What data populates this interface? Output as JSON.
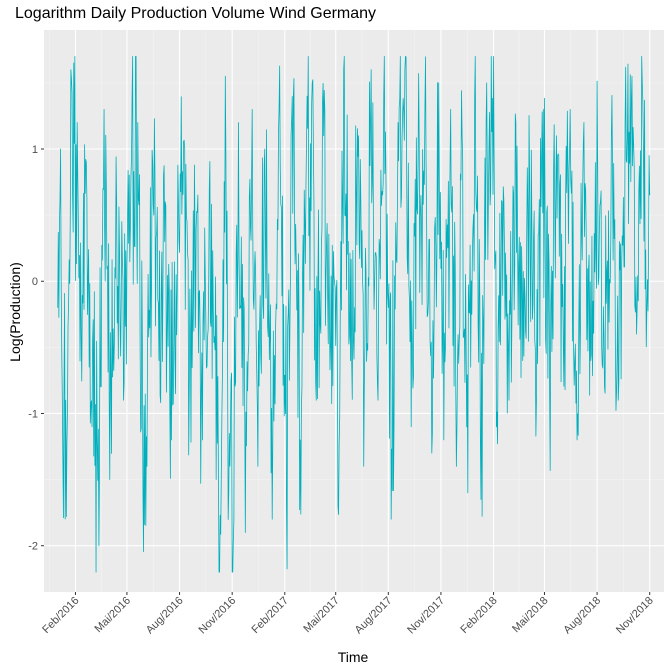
{
  "colors": {
    "line": "#00AFBB",
    "panel": "#EBEBEB",
    "grid_major": "#FFFFFF",
    "grid_minor": "#F4F4F4",
    "tick_text": "#4D4D4D",
    "axis_title": "#000000"
  },
  "chart_data": {
    "type": "line",
    "title": "Logarithm Daily Production Volume Wind Germany",
    "xlabel": "Time",
    "ylabel": "Log(Production)",
    "x_start": "2016-01-01",
    "x_end": "2018-11-01",
    "xlim": [
      "2015-12-08",
      "2018-11-26"
    ],
    "ylim": [
      -2.35,
      1.9
    ],
    "grid": true,
    "legend": "none",
    "x_ticks": [
      {
        "date": "2016-02-01",
        "label": "Feb/2016"
      },
      {
        "date": "2016-05-01",
        "label": "Mai/2016"
      },
      {
        "date": "2016-08-01",
        "label": "Aug/2016"
      },
      {
        "date": "2016-11-01",
        "label": "Nov/2016"
      },
      {
        "date": "2017-02-01",
        "label": "Feb/2017"
      },
      {
        "date": "2017-05-01",
        "label": "Mai/2017"
      },
      {
        "date": "2017-08-01",
        "label": "Aug/2017"
      },
      {
        "date": "2017-11-01",
        "label": "Nov/2017"
      },
      {
        "date": "2018-02-01",
        "label": "Feb/2018"
      },
      {
        "date": "2018-05-01",
        "label": "Mai/2018"
      },
      {
        "date": "2018-08-01",
        "label": "Aug/2018"
      },
      {
        "date": "2018-11-01",
        "label": "Nov/2018"
      }
    ],
    "y_ticks": [
      {
        "value": -2,
        "label": "-2"
      },
      {
        "value": -1,
        "label": "-1"
      },
      {
        "value": 0,
        "label": "0"
      },
      {
        "value": 1,
        "label": "1"
      }
    ],
    "anchors": [
      {
        "date": "2016-01-01",
        "value": -0.2
      },
      {
        "date": "2016-01-06",
        "value": 1.0
      },
      {
        "date": "2016-01-10",
        "value": -1.35
      },
      {
        "date": "2016-01-16",
        "value": -1.78
      },
      {
        "date": "2016-01-24",
        "value": 1.6
      },
      {
        "date": "2016-01-29",
        "value": 1.65
      },
      {
        "date": "2016-02-04",
        "value": 1.2
      },
      {
        "date": "2016-02-11",
        "value": -0.4
      },
      {
        "date": "2016-02-20",
        "value": 0.9
      },
      {
        "date": "2016-03-01",
        "value": -1.1
      },
      {
        "date": "2016-03-13",
        "value": -2.0
      },
      {
        "date": "2016-03-22",
        "value": 1.3
      },
      {
        "date": "2016-04-01",
        "value": -1.5
      },
      {
        "date": "2016-04-13",
        "value": 0.6
      },
      {
        "date": "2016-04-25",
        "value": -0.9
      },
      {
        "date": "2016-05-10",
        "value": 1.4
      },
      {
        "date": "2016-05-20",
        "value": 1.2
      },
      {
        "date": "2016-05-29",
        "value": -1.6
      },
      {
        "date": "2016-06-05",
        "value": -1.4
      },
      {
        "date": "2016-06-15",
        "value": 0.9
      },
      {
        "date": "2016-06-26",
        "value": -0.6
      },
      {
        "date": "2016-07-06",
        "value": 0.3
      },
      {
        "date": "2016-07-18",
        "value": -1.2
      },
      {
        "date": "2016-07-30",
        "value": 0.6
      },
      {
        "date": "2016-08-10",
        "value": 1.0
      },
      {
        "date": "2016-08-18",
        "value": -0.8
      },
      {
        "date": "2016-08-30",
        "value": 0.4
      },
      {
        "date": "2016-09-10",
        "value": -1.2
      },
      {
        "date": "2016-09-22",
        "value": 0.7
      },
      {
        "date": "2016-10-04",
        "value": -1.5
      },
      {
        "date": "2016-10-10",
        "value": -2.25
      },
      {
        "date": "2016-10-20",
        "value": 1.55
      },
      {
        "date": "2016-10-26",
        "value": -1.6
      },
      {
        "date": "2016-11-02",
        "value": -2.2
      },
      {
        "date": "2016-11-12",
        "value": 1.2
      },
      {
        "date": "2016-11-24",
        "value": -1.9
      },
      {
        "date": "2016-12-06",
        "value": 1.3
      },
      {
        "date": "2016-12-16",
        "value": -1.4
      },
      {
        "date": "2016-12-28",
        "value": 1.0
      },
      {
        "date": "2017-01-10",
        "value": -1.8
      },
      {
        "date": "2017-01-22",
        "value": 1.3
      },
      {
        "date": "2017-02-04",
        "value": -1.7
      },
      {
        "date": "2017-02-16",
        "value": 1.4
      },
      {
        "date": "2017-02-28",
        "value": -1.2
      },
      {
        "date": "2017-03-12",
        "value": 1.4
      },
      {
        "date": "2017-03-20",
        "value": 1.35
      },
      {
        "date": "2017-03-28",
        "value": -0.9
      },
      {
        "date": "2017-04-10",
        "value": 1.1
      },
      {
        "date": "2017-04-22",
        "value": -0.5
      },
      {
        "date": "2017-05-05",
        "value": -1.7
      },
      {
        "date": "2017-05-15",
        "value": 1.6
      },
      {
        "date": "2017-05-27",
        "value": -0.6
      },
      {
        "date": "2017-06-10",
        "value": 1.1
      },
      {
        "date": "2017-06-20",
        "value": -0.8
      },
      {
        "date": "2017-07-02",
        "value": 1.6
      },
      {
        "date": "2017-07-14",
        "value": -0.9
      },
      {
        "date": "2017-07-24",
        "value": 1.4
      },
      {
        "date": "2017-08-06",
        "value": -1.8
      },
      {
        "date": "2017-08-18",
        "value": 1.2
      },
      {
        "date": "2017-08-30",
        "value": 1.6
      },
      {
        "date": "2017-09-10",
        "value": -1.1
      },
      {
        "date": "2017-09-22",
        "value": 0.9
      },
      {
        "date": "2017-10-04",
        "value": 1.3
      },
      {
        "date": "2017-10-16",
        "value": -1.3
      },
      {
        "date": "2017-10-28",
        "value": 1.5
      },
      {
        "date": "2017-11-06",
        "value": -1.2
      },
      {
        "date": "2017-11-18",
        "value": 1.3
      },
      {
        "date": "2017-11-28",
        "value": -1.4
      },
      {
        "date": "2017-12-08",
        "value": 1.1
      },
      {
        "date": "2017-12-18",
        "value": -1.6
      },
      {
        "date": "2017-12-30",
        "value": 1.4
      },
      {
        "date": "2018-01-10",
        "value": -1.65
      },
      {
        "date": "2018-01-20",
        "value": 1.5
      },
      {
        "date": "2018-02-01",
        "value": 1.72
      },
      {
        "date": "2018-02-06",
        "value": -1.1
      },
      {
        "date": "2018-02-16",
        "value": 0.6
      },
      {
        "date": "2018-02-28",
        "value": -0.9
      },
      {
        "date": "2018-03-12",
        "value": 1.2
      },
      {
        "date": "2018-03-24",
        "value": -0.6
      },
      {
        "date": "2018-04-05",
        "value": 0.8
      },
      {
        "date": "2018-04-17",
        "value": -0.9
      },
      {
        "date": "2018-04-29",
        "value": 1.3
      },
      {
        "date": "2018-05-10",
        "value": -0.8
      },
      {
        "date": "2018-05-22",
        "value": 1.1
      },
      {
        "date": "2018-06-03",
        "value": -0.5
      },
      {
        "date": "2018-06-15",
        "value": 1.3
      },
      {
        "date": "2018-06-27",
        "value": -1.2
      },
      {
        "date": "2018-07-09",
        "value": 1.2
      },
      {
        "date": "2018-07-21",
        "value": -0.6
      },
      {
        "date": "2018-08-02",
        "value": 0.9
      },
      {
        "date": "2018-08-14",
        "value": -0.8
      },
      {
        "date": "2018-08-26",
        "value": 1.1
      },
      {
        "date": "2018-09-07",
        "value": -0.9
      },
      {
        "date": "2018-09-19",
        "value": 1.2
      },
      {
        "date": "2018-10-01",
        "value": 1.55
      },
      {
        "date": "2018-10-09",
        "value": -0.4
      },
      {
        "date": "2018-10-19",
        "value": 1.5
      },
      {
        "date": "2018-10-27",
        "value": -0.2
      },
      {
        "date": "2018-11-01",
        "value": 0.65
      }
    ]
  }
}
